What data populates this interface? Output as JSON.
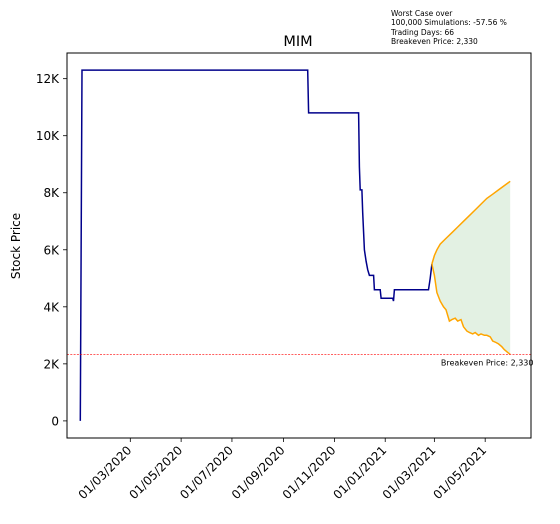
{
  "annotation": {
    "line1": "Worst Case over",
    "line2": "100,000 Simulations: -57.56 %",
    "line3": "Trading Days: 66",
    "line4": "Breakeven Price: 2,330"
  },
  "chart_data": {
    "type": "line",
    "title": "MIM",
    "xlabel": "",
    "ylabel": "Stock Price",
    "ylim": [
      -600,
      12900
    ],
    "xlim": [
      "2019-12-16",
      "2021-06-25"
    ],
    "x_tick_labels": [
      "01/03/2020",
      "01/05/2020",
      "01/07/2020",
      "01/09/2020",
      "01/11/2020",
      "01/01/2021",
      "01/03/2021",
      "01/05/2021"
    ],
    "x_tick_dates": [
      "2020-03-01",
      "2020-05-01",
      "2020-07-01",
      "2020-09-01",
      "2020-11-01",
      "2021-01-01",
      "2021-03-01",
      "2021-05-01"
    ],
    "y_ticks": [
      0,
      2000,
      4000,
      6000,
      8000,
      10000,
      12000
    ],
    "y_tick_labels": [
      "0",
      "2K",
      "4K",
      "6K",
      "8K",
      "10K",
      "12K"
    ],
    "grid": false,
    "series": [
      {
        "color": "#00008b",
        "points": [
          [
            "2020-01-01",
            0
          ],
          [
            "2020-01-03",
            12300
          ],
          [
            "2020-09-30",
            12300
          ],
          [
            "2020-10-01",
            10800
          ],
          [
            "2020-11-30",
            10800
          ],
          [
            "2020-12-01",
            8900
          ],
          [
            "2020-12-02",
            8100
          ],
          [
            "2020-12-04",
            8100
          ],
          [
            "2020-12-05",
            7300
          ],
          [
            "2020-12-07",
            6000
          ],
          [
            "2020-12-09",
            5600
          ],
          [
            "2020-12-11",
            5300
          ],
          [
            "2020-12-13",
            5100
          ],
          [
            "2020-12-18",
            5100
          ],
          [
            "2020-12-19",
            4600
          ],
          [
            "2020-12-26",
            4600
          ],
          [
            "2020-12-27",
            4300
          ],
          [
            "2021-01-10",
            4300
          ],
          [
            "2021-01-11",
            4200
          ],
          [
            "2021-01-12",
            4600
          ],
          [
            "2021-02-22",
            4600
          ],
          [
            "2021-02-24",
            5000
          ],
          [
            "2021-02-26",
            5500
          ]
        ]
      },
      {
        "color": "#ffa500",
        "points": [
          [
            "2021-02-26",
            5500
          ],
          [
            "2021-03-01",
            5800
          ],
          [
            "2021-03-04",
            6000
          ],
          [
            "2021-03-08",
            6200
          ],
          [
            "2021-03-15",
            6400
          ],
          [
            "2021-03-22",
            6600
          ],
          [
            "2021-03-29",
            6800
          ],
          [
            "2021-04-05",
            7000
          ],
          [
            "2021-04-12",
            7200
          ],
          [
            "2021-04-19",
            7400
          ],
          [
            "2021-04-26",
            7600
          ],
          [
            "2021-05-03",
            7800
          ],
          [
            "2021-05-10",
            7950
          ],
          [
            "2021-05-17",
            8100
          ],
          [
            "2021-05-24",
            8250
          ],
          [
            "2021-05-31",
            8400
          ]
        ]
      },
      {
        "color": "#ffa500",
        "points": [
          [
            "2021-02-26",
            5500
          ],
          [
            "2021-03-01",
            5100
          ],
          [
            "2021-03-04",
            4500
          ],
          [
            "2021-03-08",
            4200
          ],
          [
            "2021-03-12",
            4000
          ],
          [
            "2021-03-15",
            3900
          ],
          [
            "2021-03-19",
            3500
          ],
          [
            "2021-03-22",
            3550
          ],
          [
            "2021-03-26",
            3600
          ],
          [
            "2021-03-29",
            3500
          ],
          [
            "2021-04-02",
            3550
          ],
          [
            "2021-04-05",
            3300
          ],
          [
            "2021-04-09",
            3150
          ],
          [
            "2021-04-12",
            3100
          ],
          [
            "2021-04-16",
            3050
          ],
          [
            "2021-04-19",
            3100
          ],
          [
            "2021-04-23",
            3000
          ],
          [
            "2021-04-26",
            3050
          ],
          [
            "2021-04-30",
            3000
          ],
          [
            "2021-05-03",
            3000
          ],
          [
            "2021-05-07",
            2950
          ],
          [
            "2021-05-10",
            2800
          ],
          [
            "2021-05-14",
            2750
          ],
          [
            "2021-05-17",
            2700
          ],
          [
            "2021-05-21",
            2600
          ],
          [
            "2021-05-24",
            2500
          ],
          [
            "2021-05-28",
            2400
          ],
          [
            "2021-05-31",
            2330
          ]
        ]
      }
    ],
    "fill_color": "#d9ecd9",
    "breakeven": {
      "value": 2330,
      "label": "Breakeven Price: 2,330",
      "color": "#ff0000"
    }
  }
}
